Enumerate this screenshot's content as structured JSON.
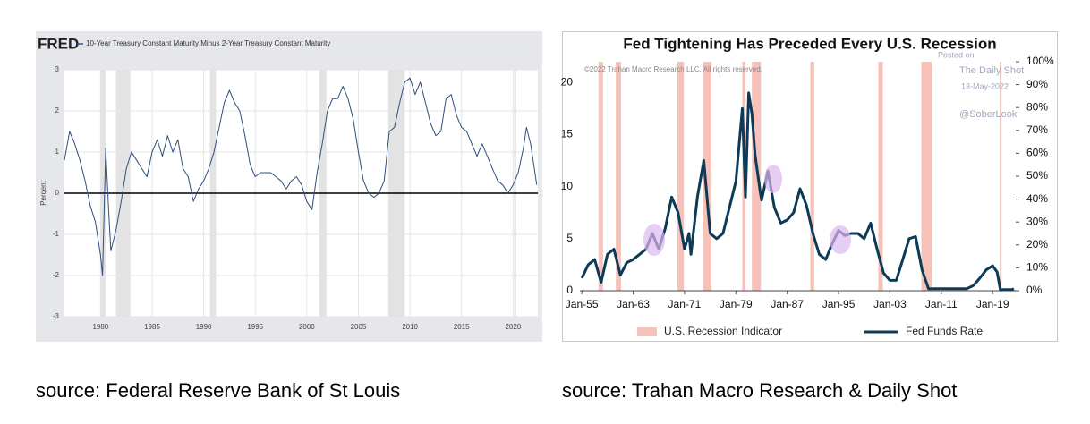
{
  "chart_data": [
    {
      "type": "line",
      "logo": "FRED",
      "ylabel": "Percent",
      "xlim": [
        1976.5,
        2022.4
      ],
      "ylim": [
        -3,
        3
      ],
      "xticks": [
        1980,
        1985,
        1990,
        1995,
        2000,
        2005,
        2010,
        2015,
        2020
      ],
      "yticks": [
        -3,
        -2,
        -1,
        0,
        1,
        2,
        3
      ],
      "grid": true,
      "shading": {
        "color": "#e3e3e3",
        "periods": [
          [
            1980.0,
            1980.5
          ],
          [
            1981.5,
            1982.9
          ],
          [
            1990.6,
            1991.2
          ],
          [
            2001.2,
            2001.9
          ],
          [
            2007.9,
            2009.5
          ],
          [
            2020.1,
            2020.3
          ]
        ]
      },
      "series": [
        {
          "name": "10-Year Treasury Constant Maturity Minus 2-Year Treasury Constant Maturity",
          "color": "#2f4f7f",
          "x": [
            1976.5,
            1977,
            1977.5,
            1978,
            1978.5,
            1979,
            1979.5,
            1980,
            1980.2,
            1980.5,
            1980.8,
            1981,
            1981.5,
            1982,
            1982.5,
            1983,
            1983.5,
            1984,
            1984.5,
            1985,
            1985.5,
            1986,
            1986.5,
            1987,
            1987.5,
            1988,
            1988.5,
            1989,
            1989.5,
            1990,
            1990.5,
            1991,
            1991.5,
            1992,
            1992.5,
            1993,
            1993.5,
            1994,
            1994.5,
            1995,
            1995.5,
            1996,
            1996.5,
            1997,
            1997.5,
            1998,
            1998.5,
            1999,
            1999.5,
            2000,
            2000.5,
            2001,
            2001.5,
            2002,
            2002.5,
            2003,
            2003.5,
            2004,
            2004.5,
            2005,
            2005.5,
            2006,
            2006.5,
            2007,
            2007.5,
            2008,
            2008.5,
            2009,
            2009.5,
            2010,
            2010.5,
            2011,
            2011.5,
            2012,
            2012.5,
            2013,
            2013.5,
            2014,
            2014.5,
            2015,
            2015.5,
            2016,
            2016.5,
            2017,
            2017.5,
            2018,
            2018.5,
            2019,
            2019.5,
            2020,
            2020.5,
            2021,
            2021.3,
            2021.7,
            2022,
            2022.3
          ],
          "values": [
            0.8,
            1.5,
            1.2,
            0.8,
            0.3,
            -0.3,
            -0.7,
            -1.5,
            -2.0,
            1.1,
            -0.5,
            -1.4,
            -0.9,
            -0.2,
            0.6,
            1.0,
            0.8,
            0.6,
            0.4,
            1.0,
            1.3,
            0.9,
            1.4,
            1.0,
            1.3,
            0.6,
            0.4,
            -0.2,
            0.1,
            0.3,
            0.6,
            1.0,
            1.6,
            2.2,
            2.5,
            2.2,
            2.0,
            1.4,
            0.7,
            0.4,
            0.5,
            0.5,
            0.5,
            0.4,
            0.3,
            0.1,
            0.3,
            0.4,
            0.2,
            -0.2,
            -0.4,
            0.5,
            1.2,
            2.0,
            2.3,
            2.3,
            2.6,
            2.3,
            1.8,
            1.0,
            0.3,
            0.0,
            -0.1,
            0.0,
            0.3,
            1.5,
            1.6,
            2.2,
            2.7,
            2.8,
            2.4,
            2.7,
            2.2,
            1.7,
            1.4,
            1.5,
            2.3,
            2.4,
            1.9,
            1.6,
            1.5,
            1.2,
            0.9,
            1.2,
            0.9,
            0.6,
            0.3,
            0.2,
            0.0,
            0.2,
            0.5,
            1.1,
            1.6,
            1.2,
            0.7,
            0.2
          ]
        }
      ]
    },
    {
      "type": "line",
      "title": "Fed Tightening Has Preceded Every U.S. Recession",
      "annotations": [
        "©2022 Trahan Macro Research LLC. All rights reserved.",
        "Posted on",
        "The Daily Shot",
        "13-May-2022",
        "@SoberLook"
      ],
      "xlim": [
        1954.7,
        2022.6
      ],
      "ylim": [
        0,
        22
      ],
      "y2lim": [
        0,
        100
      ],
      "xticks": [
        {
          "value": 1955,
          "label": "Jan-55"
        },
        {
          "value": 1963,
          "label": "Jan-63"
        },
        {
          "value": 1971,
          "label": "Jan-71"
        },
        {
          "value": 1979,
          "label": "Jan-79"
        },
        {
          "value": 1987,
          "label": "Jan-87"
        },
        {
          "value": 1995,
          "label": "Jan-95"
        },
        {
          "value": 2003,
          "label": "Jan-03"
        },
        {
          "value": 2011,
          "label": "Jan-11"
        },
        {
          "value": 2019,
          "label": "Jan-19"
        }
      ],
      "yticks": [
        0,
        5,
        10,
        15,
        20
      ],
      "y2ticks": [
        {
          "value": 0,
          "label": "0%"
        },
        {
          "value": 10,
          "label": "10%"
        },
        {
          "value": 20,
          "label": "20%"
        },
        {
          "value": 30,
          "label": "30%"
        },
        {
          "value": 40,
          "label": "40%"
        },
        {
          "value": 50,
          "label": "50%"
        },
        {
          "value": 60,
          "label": "60%"
        },
        {
          "value": 70,
          "label": "70%"
        },
        {
          "value": 80,
          "label": "80%"
        },
        {
          "value": 90,
          "label": "90%"
        },
        {
          "value": 100,
          "label": "100%"
        }
      ],
      "series": [
        {
          "name": "U.S. Recession Indicator",
          "color": "#f6c1b8",
          "axis": "y2",
          "periods": [
            [
              1957.6,
              1958.3
            ],
            [
              1960.3,
              1961.1
            ],
            [
              1969.9,
              1970.9
            ],
            [
              1973.9,
              1975.2
            ],
            [
              1980.0,
              1980.5
            ],
            [
              1981.5,
              1982.9
            ],
            [
              1990.6,
              1991.2
            ],
            [
              2001.2,
              2001.9
            ],
            [
              2007.9,
              2009.5
            ],
            [
              2020.1,
              2020.3
            ]
          ]
        },
        {
          "name": "Fed Funds Rate",
          "color": "#0d3b57",
          "x": [
            1955,
            1956,
            1957,
            1958,
            1959,
            1960,
            1960.8,
            1961,
            1962,
            1963,
            1964,
            1965,
            1966,
            1967,
            1968,
            1969,
            1970,
            1971,
            1971.7,
            1972,
            1973,
            1974,
            1975,
            1976,
            1977,
            1978,
            1979,
            1980,
            1980.5,
            1981,
            1981.5,
            1982,
            1982.8,
            1983,
            1984,
            1985,
            1986,
            1987,
            1988,
            1989,
            1990,
            1991,
            1992,
            1993,
            1994,
            1995,
            1996,
            1997,
            1998,
            1999,
            2000,
            2001,
            2002,
            2003,
            2004,
            2005,
            2006,
            2007,
            2008,
            2009,
            2015,
            2016,
            2017,
            2018,
            2019,
            2019.7,
            2020.2,
            2022,
            2022.3
          ],
          "values": [
            1.2,
            2.5,
            3.0,
            0.8,
            3.5,
            4.0,
            2.0,
            1.5,
            2.7,
            3.0,
            3.5,
            4.0,
            5.5,
            4.0,
            6.0,
            9.0,
            7.5,
            4.0,
            5.5,
            3.5,
            9.0,
            12.5,
            5.5,
            5.0,
            5.5,
            8.0,
            10.5,
            17.5,
            9.0,
            19.0,
            17.0,
            13.0,
            9.5,
            8.7,
            11.5,
            8.0,
            6.5,
            6.8,
            7.5,
            9.8,
            8.2,
            5.5,
            3.5,
            3.0,
            4.5,
            5.8,
            5.3,
            5.5,
            5.5,
            5.0,
            6.5,
            4.0,
            1.7,
            1.0,
            1.0,
            3.0,
            5.0,
            5.2,
            2.0,
            0.2,
            0.2,
            0.5,
            1.2,
            2.0,
            2.4,
            1.8,
            0.1,
            0.1,
            0.2
          ]
        }
      ]
    }
  ],
  "captions": [
    "source: Federal Reserve Bank of St Louis",
    "source: Trahan Macro Research & Daily Shot"
  ]
}
